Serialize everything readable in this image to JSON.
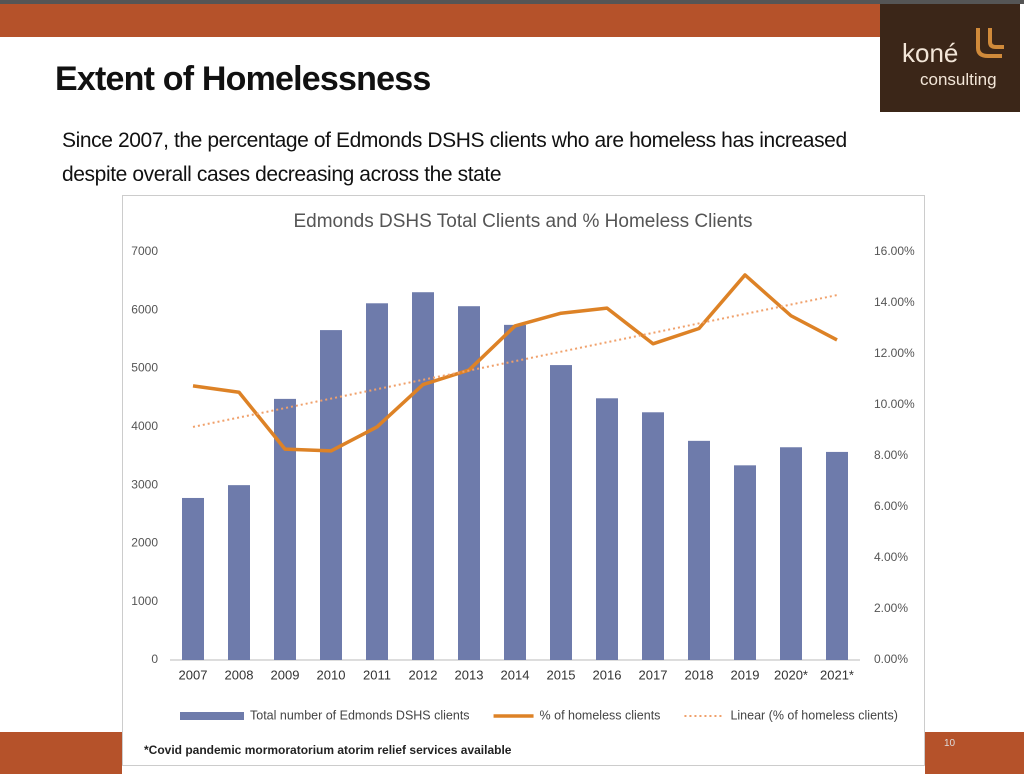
{
  "slide": {
    "title": "Extent of Homelessness",
    "subtitle": "Since 2007, the percentage of Edmonds DSHS clients who are homeless has increased despite overall cases decreasing across the state",
    "logo_name": "koné",
    "logo_sub": "consulting",
    "page_number": "10"
  },
  "chart_data": {
    "type": "bar",
    "title": "Edmonds DSHS Total Clients and % Homeless Clients",
    "categories": [
      "2007",
      "2008",
      "2009",
      "2010",
      "2011",
      "2012",
      "2013",
      "2014",
      "2015",
      "2016",
      "2017",
      "2018",
      "2019",
      "2020*",
      "2021*"
    ],
    "series": [
      {
        "name": "Total number of Edmonds DSHS clients",
        "type": "bar",
        "color": "#6e7bab",
        "values": [
          2780,
          3000,
          4480,
          5660,
          6120,
          6310,
          6070,
          5750,
          5060,
          4490,
          4250,
          3760,
          3340,
          3650,
          3570
        ]
      },
      {
        "name": "% of homeless clients",
        "type": "line",
        "axis": "y2",
        "color": "#dd8226",
        "values": [
          10.75,
          10.5,
          8.27,
          8.2,
          9.14,
          10.8,
          11.37,
          13.1,
          13.6,
          13.8,
          12.4,
          13.0,
          15.1,
          13.5,
          12.55
        ]
      },
      {
        "name": "Linear (% of homeless clients)",
        "type": "line",
        "axis": "y2",
        "color": "#f0a06a",
        "style": "dotted",
        "values": [
          9.14,
          9.51,
          9.88,
          10.25,
          10.62,
          10.99,
          11.35,
          11.72,
          12.09,
          12.46,
          12.83,
          13.2,
          13.57,
          13.94,
          14.31
        ]
      }
    ],
    "ylim": [
      0,
      7000
    ],
    "yticks": [
      0,
      1000,
      2000,
      3000,
      4000,
      5000,
      6000,
      7000
    ],
    "y2lim": [
      0,
      16
    ],
    "y2ticks": [
      {
        "value": 0,
        "label": "0.00%"
      },
      {
        "value": 2,
        "label": "2.00%"
      },
      {
        "value": 4,
        "label": "4.00%"
      },
      {
        "value": 6,
        "label": "6.00%"
      },
      {
        "value": 8,
        "label": "8.00%"
      },
      {
        "value": 10,
        "label": "10.00%"
      },
      {
        "value": 12,
        "label": "12.00%"
      },
      {
        "value": 14,
        "label": "14.00%"
      },
      {
        "value": 16,
        "label": "16.00%"
      }
    ],
    "grid": false,
    "legend": "bottom",
    "footnote": "*Covid pandemic mormoratorium atorim relief services available"
  }
}
